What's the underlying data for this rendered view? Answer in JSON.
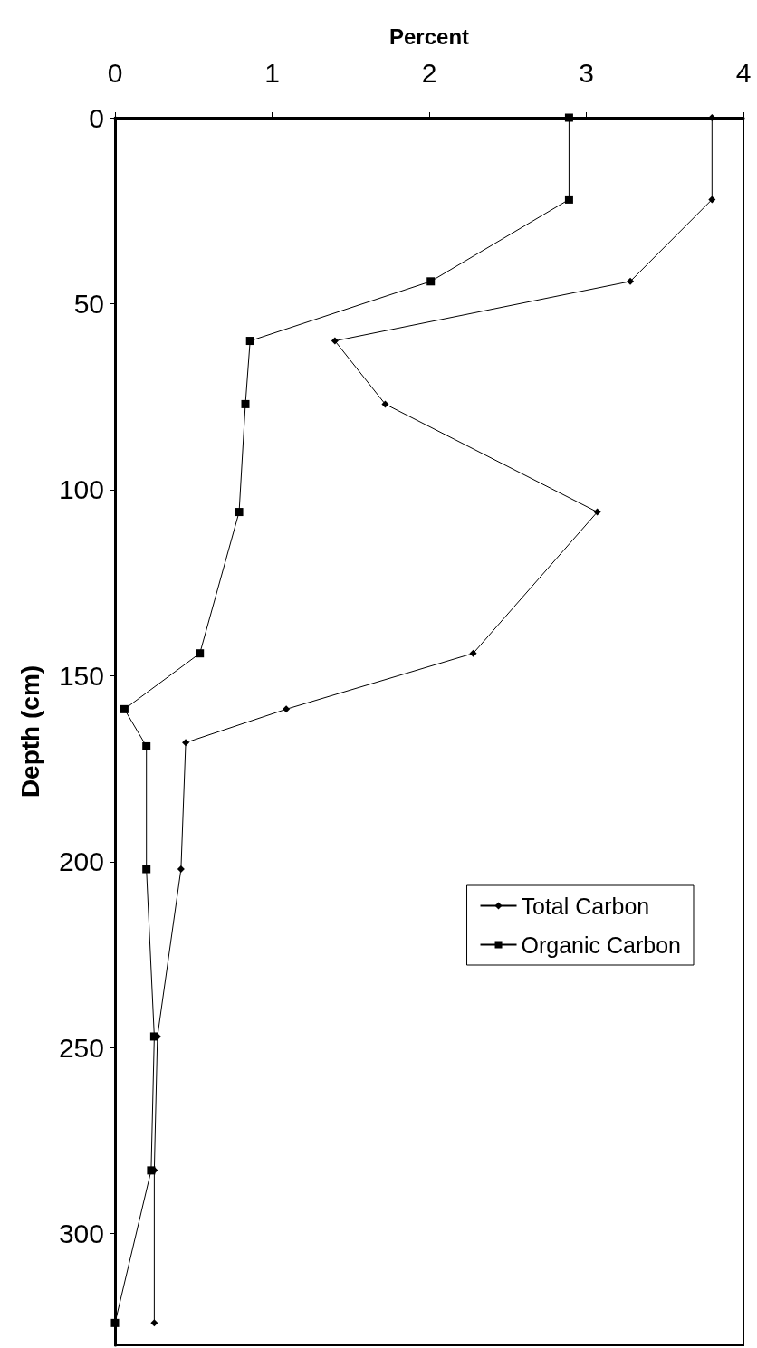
{
  "chart_data": {
    "type": "line",
    "xlabel": "Percent",
    "ylabel": "Depth (cm)",
    "xlim": [
      0,
      4
    ],
    "xticks": [
      0,
      1,
      2,
      3,
      4
    ],
    "ylim": [
      330,
      0
    ],
    "yticks": [
      0,
      50,
      100,
      150,
      200,
      250,
      300
    ],
    "legend": "right",
    "line_style": "solid",
    "series": [
      {
        "name": "Total Carbon",
        "color": "#000000",
        "marker": "diamond",
        "x": [
          3.8,
          3.8,
          3.28,
          1.4,
          1.72,
          3.07,
          2.28,
          1.09,
          0.45,
          0.42,
          0.27,
          0.25,
          0.25
        ],
        "values": [
          0,
          22,
          44,
          60,
          77,
          106,
          144,
          159,
          168,
          202,
          247,
          283,
          324
        ]
      },
      {
        "name": "Organic Carbon",
        "color": "#000000",
        "marker": "square",
        "x": [
          2.89,
          2.89,
          2.01,
          0.86,
          0.83,
          0.79,
          0.54,
          0.06,
          0.2,
          0.2,
          0.25,
          0.23,
          0
        ],
        "values": [
          0,
          22,
          44,
          60,
          77,
          106,
          144,
          159,
          169,
          202,
          247,
          283,
          324
        ]
      }
    ]
  }
}
